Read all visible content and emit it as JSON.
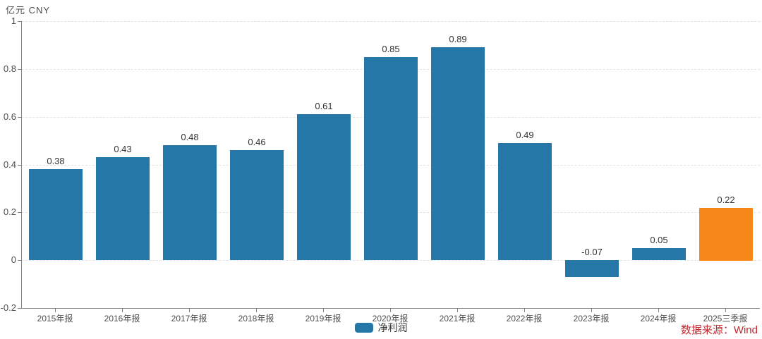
{
  "header": {
    "unit_label": "亿元 CNY"
  },
  "chart_data": {
    "type": "bar",
    "title": "",
    "xlabel": "",
    "ylabel": "亿元 CNY",
    "categories": [
      "2015年报",
      "2016年报",
      "2017年报",
      "2018年报",
      "2019年报",
      "2020年报",
      "2021年报",
      "2022年报",
      "2023年报",
      "2024年报",
      "2025三季报"
    ],
    "series": [
      {
        "name": "净利润",
        "values": [
          0.38,
          0.43,
          0.48,
          0.46,
          0.61,
          0.85,
          0.89,
          0.49,
          -0.07,
          0.05,
          0.22
        ],
        "value_labels": [
          "0.38",
          "0.43",
          "0.48",
          "0.46",
          "0.61",
          "0.85",
          "0.89",
          "0.49",
          "-0.07",
          "0.05",
          "0.22"
        ]
      }
    ],
    "ylim": [
      -0.2,
      1
    ],
    "yticks": {
      "values": [
        1,
        0.8,
        0.6,
        0.4,
        0.2,
        0,
        -0.2
      ],
      "labels": [
        "1",
        "0.8",
        "0.6",
        "0.4",
        "0.2",
        "0",
        "-0.2"
      ]
    },
    "grid": "horizontal-dashed",
    "legend": {
      "position": "bottom-center",
      "entries": [
        {
          "label": "净利润",
          "color": "#2577A8"
        }
      ]
    },
    "colors": {
      "bar_default": "#2577A8",
      "bar_highlight": "#F6881A",
      "highlight_index": 10,
      "axis": "#808080",
      "gridline": "#E3E3E3",
      "value_label": "#333333",
      "tick_label": "#4D4D4D"
    }
  },
  "footer": {
    "source_note": "数据来源：Wind",
    "color": "#C0272D"
  }
}
